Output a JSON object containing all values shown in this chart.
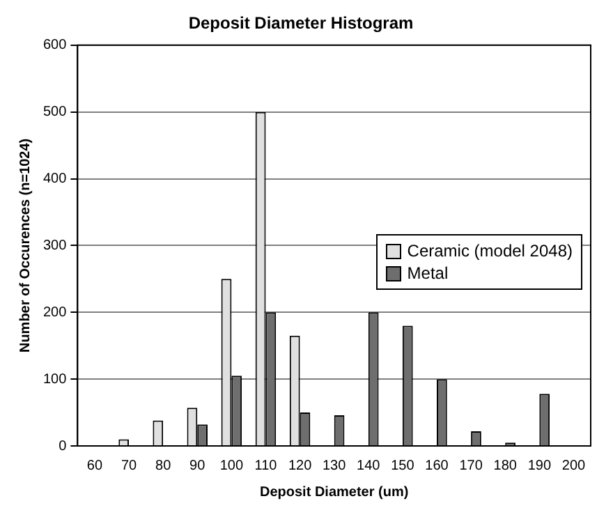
{
  "chart_data": {
    "type": "bar",
    "title": "Deposit Diameter Histogram",
    "xlabel": "Deposit Diameter (um)",
    "ylabel": "Number of Occurences (n=1024)",
    "categories": [
      "60",
      "70",
      "80",
      "90",
      "100",
      "110",
      "120",
      "130",
      "140",
      "150",
      "160",
      "170",
      "180",
      "190",
      "200"
    ],
    "series": [
      {
        "name": "Ceramic (model 2048)",
        "color": "#e0e0e0",
        "values": [
          0,
          10,
          38,
          57,
          250,
          500,
          165,
          null,
          0,
          0,
          0,
          0,
          0,
          0,
          0
        ]
      },
      {
        "name": "Metal",
        "color": "#6e6e6e",
        "values": [
          0,
          0,
          0,
          32,
          105,
          200,
          50,
          46,
          200,
          180,
          100,
          22,
          5,
          78,
          0
        ]
      }
    ],
    "ylim": [
      0,
      600
    ],
    "yticks": [
      0,
      100,
      200,
      300,
      400,
      500,
      600
    ],
    "grid": "y",
    "legend": "right"
  }
}
